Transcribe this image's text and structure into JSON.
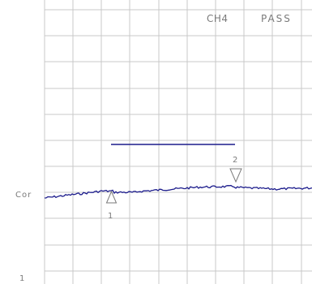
{
  "header": {
    "channel": "CH4",
    "status": "PASS"
  },
  "axis": {
    "left_label": "Cor",
    "scale_value": "1"
  },
  "markers": [
    {
      "number": "1",
      "shape": "triangle-up"
    },
    {
      "number": "2",
      "shape": "triangle-down"
    }
  ],
  "colors": {
    "background": "#ffffff",
    "grid": "#c8c8c8",
    "trace": "#1c1c8c",
    "limit_line": "#1c1c8c",
    "text": "#7a7a7a"
  }
}
